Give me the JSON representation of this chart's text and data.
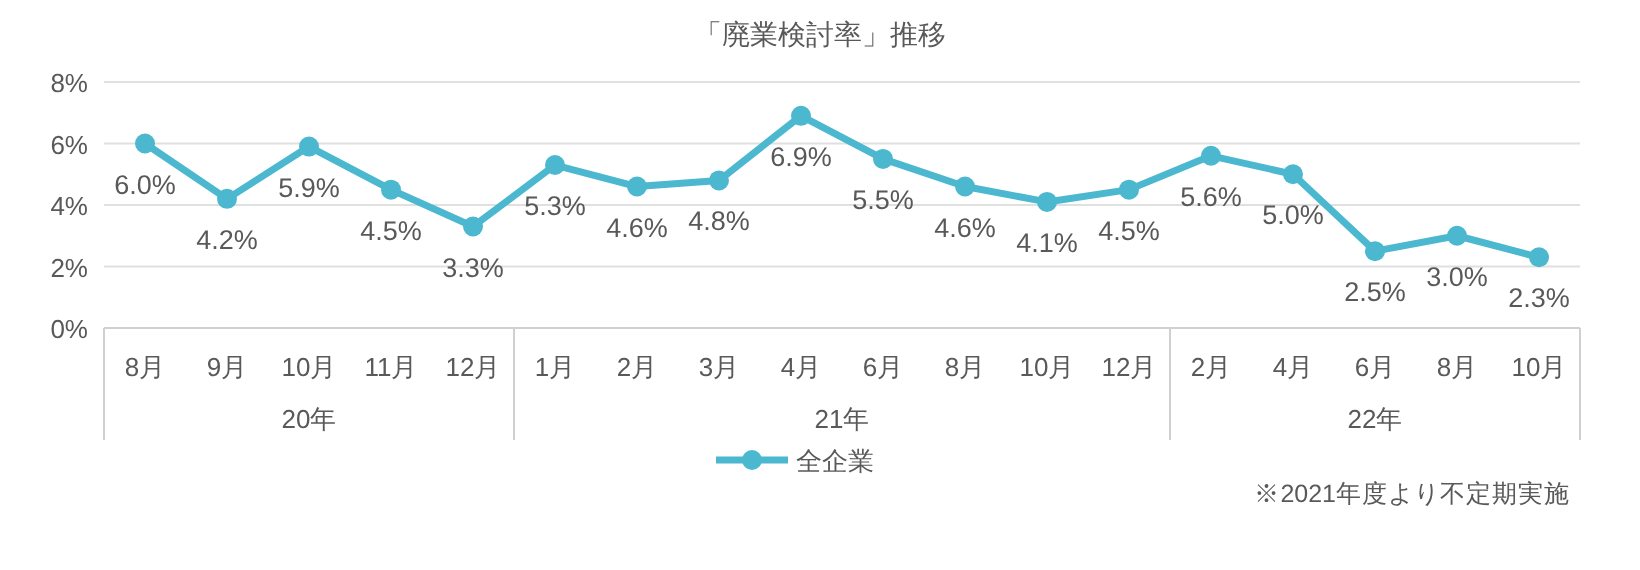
{
  "chart_data": {
    "type": "line",
    "title": "「廃業検討率」推移",
    "categories": [
      "8月",
      "9月",
      "10月",
      "11月",
      "12月",
      "1月",
      "2月",
      "3月",
      "4月",
      "6月",
      "8月",
      "10月",
      "12月",
      "2月",
      "4月",
      "6月",
      "8月",
      "10月"
    ],
    "series": [
      {
        "name": "全企業",
        "color": "#4bb8d0",
        "values": [
          6.0,
          4.2,
          5.9,
          4.5,
          3.3,
          5.3,
          4.6,
          4.8,
          6.9,
          5.5,
          4.6,
          4.1,
          4.5,
          5.6,
          5.0,
          2.5,
          3.0,
          2.3
        ],
        "value_labels": [
          "6.0%",
          "4.2%",
          "5.9%",
          "4.5%",
          "3.3%",
          "5.3%",
          "4.6%",
          "4.8%",
          "6.9%",
          "5.5%",
          "4.6%",
          "4.1%",
          "4.5%",
          "5.6%",
          "5.0%",
          "2.5%",
          "3.0%",
          "2.3%"
        ]
      }
    ],
    "ylim": [
      0,
      8
    ],
    "yticks": [
      {
        "value": 0,
        "label": "0%"
      },
      {
        "value": 2,
        "label": "2%"
      },
      {
        "value": 4,
        "label": "4%"
      },
      {
        "value": 6,
        "label": "6%"
      },
      {
        "value": 8,
        "label": "8%"
      }
    ],
    "grid": "y",
    "legend": "bottom",
    "marker": "circle",
    "line_style": "solid",
    "annotations": [
      "20年",
      "21年",
      "22年",
      "※2021年度より不定期実施"
    ]
  }
}
